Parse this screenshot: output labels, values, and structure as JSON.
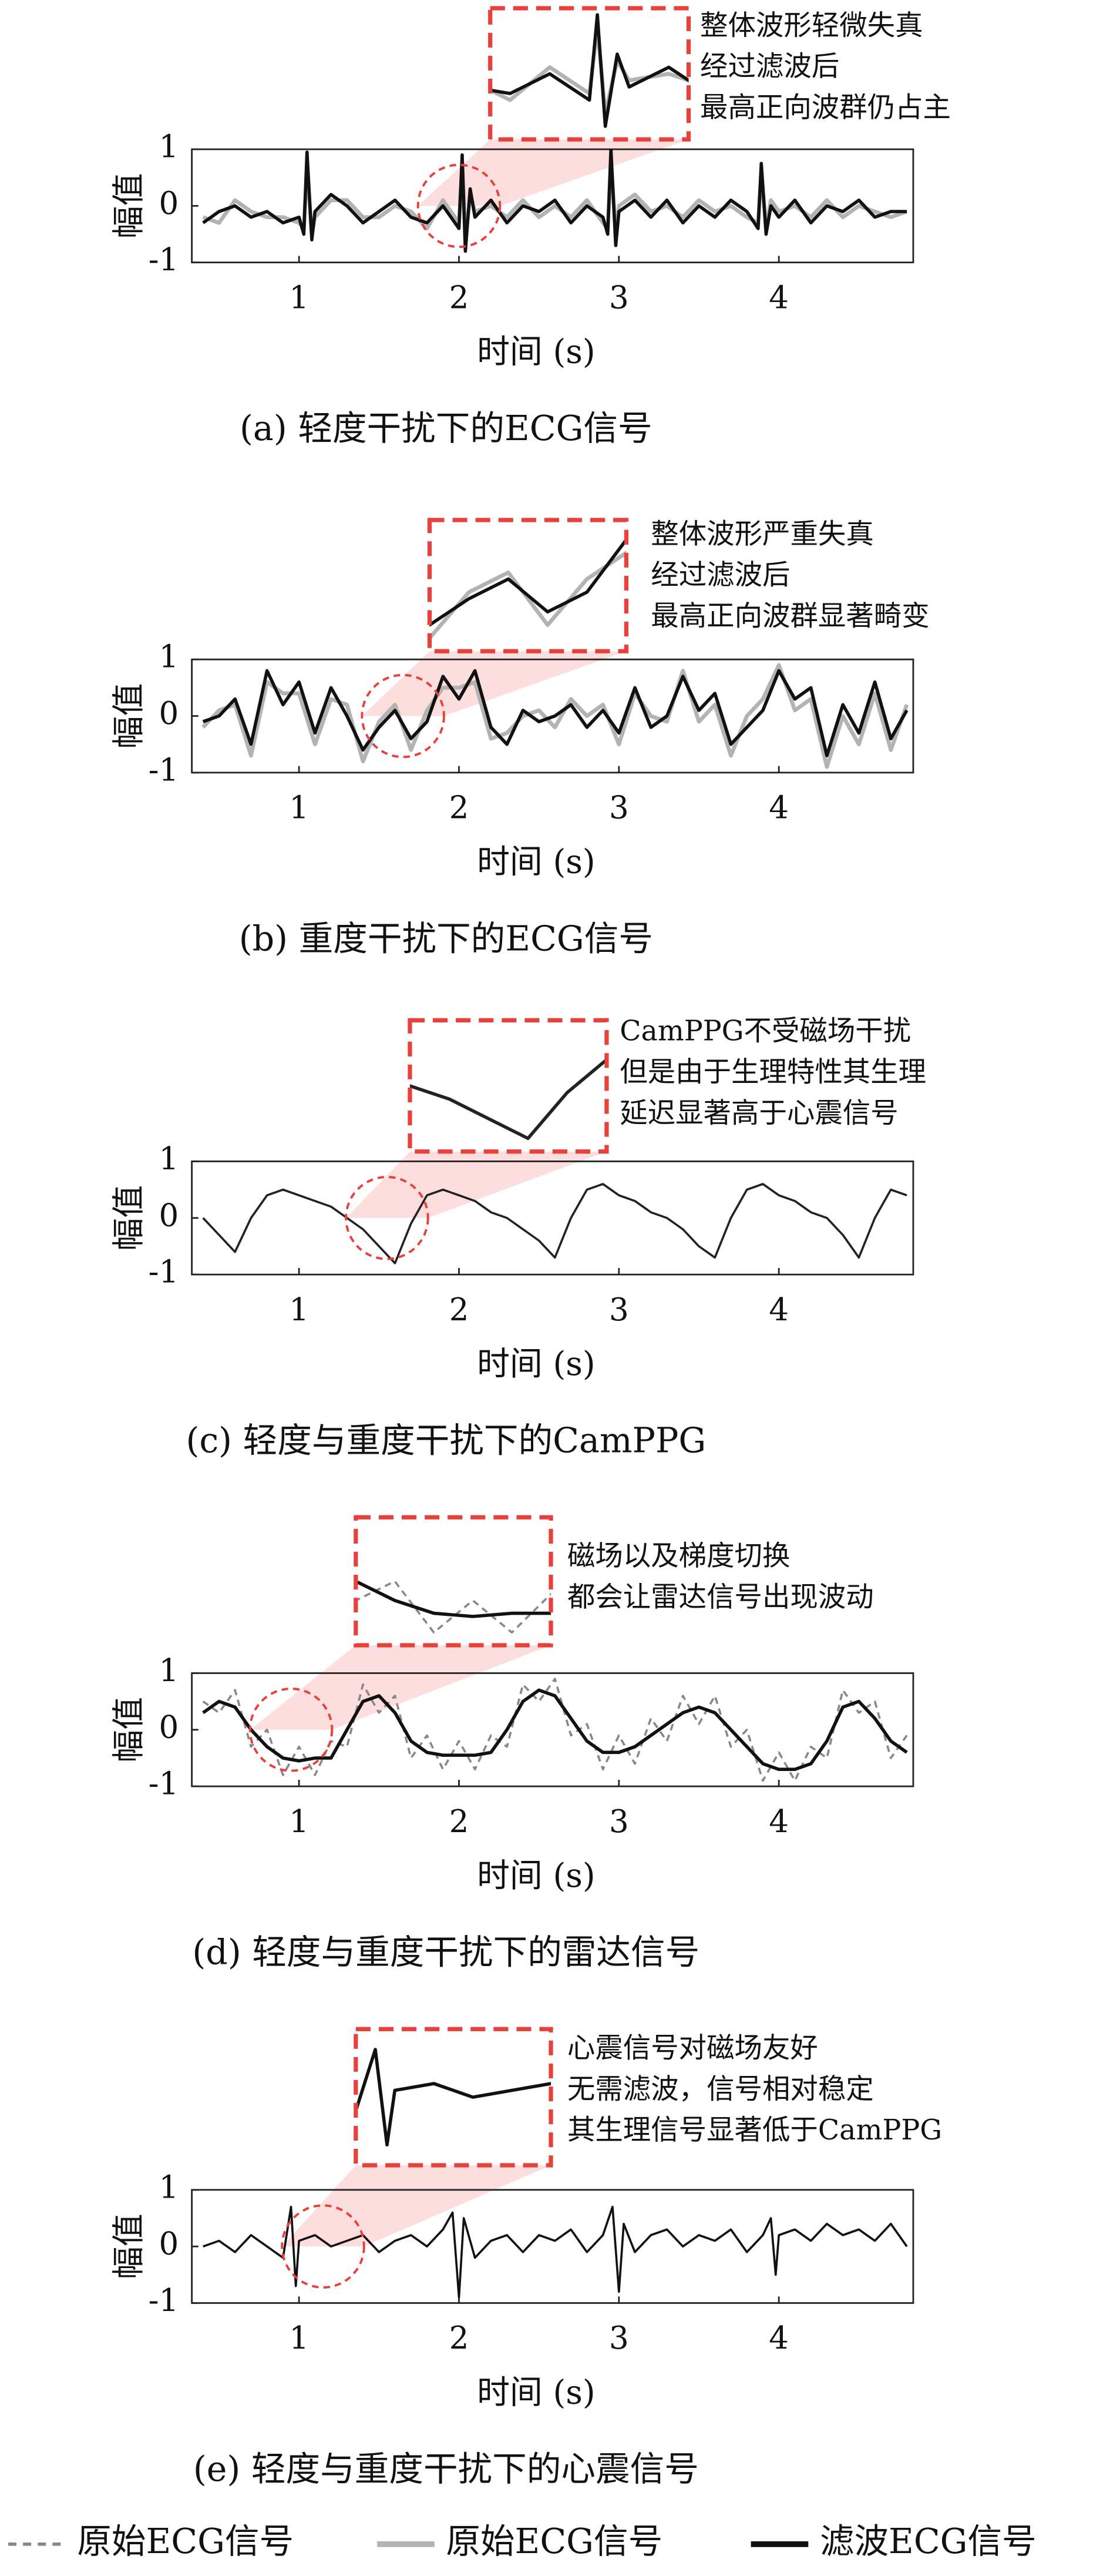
{
  "chart_data": [
    {
      "type": "line",
      "title": "(a) 轻度干扰下的ECG信号",
      "xlabel": "时间 (s)",
      "ylabel": "幅值",
      "annotation": [
        "整体波形轻微失真",
        "经过滤波后",
        "最高正向波群仍占主"
      ],
      "xlim": [
        0.33,
        4.84
      ],
      "ylim": [
        -1,
        1
      ],
      "xticks": [
        1,
        2,
        3,
        4
      ],
      "yticks": [
        -1,
        0,
        1
      ],
      "x": [
        0.4,
        0.5,
        0.6,
        0.7,
        0.8,
        0.9,
        1.0,
        1.03,
        1.05,
        1.08,
        1.1,
        1.2,
        1.3,
        1.4,
        1.5,
        1.6,
        1.7,
        1.8,
        1.9,
        2.0,
        2.02,
        2.04,
        2.07,
        2.1,
        2.2,
        2.3,
        2.4,
        2.5,
        2.6,
        2.7,
        2.8,
        2.9,
        2.93,
        2.95,
        2.98,
        3.0,
        3.1,
        3.2,
        3.3,
        3.4,
        3.5,
        3.6,
        3.7,
        3.8,
        3.87,
        3.89,
        3.92,
        3.95,
        4.0,
        4.1,
        4.2,
        4.3,
        4.4,
        4.5,
        4.6,
        4.7,
        4.8
      ],
      "series": [
        {
          "color": "#b3b3b3",
          "dashed": false,
          "values": [
            -0.2,
            -0.3,
            0.1,
            -0.1,
            -0.2,
            -0.2,
            -0.3,
            -0.4,
            0.7,
            -0.5,
            -0.2,
            0.1,
            0.1,
            -0.2,
            -0.2,
            0.0,
            -0.1,
            -0.4,
            0.1,
            -0.3,
            0.7,
            -0.6,
            0.2,
            -0.1,
            0.0,
            -0.2,
            0.1,
            -0.2,
            0.0,
            -0.2,
            0.1,
            -0.3,
            -0.4,
            0.8,
            -0.5,
            0.0,
            0.2,
            -0.1,
            0.0,
            -0.2,
            0.1,
            -0.1,
            0.0,
            -0.2,
            -0.3,
            0.6,
            -0.4,
            0.1,
            -0.1,
            0.0,
            -0.2,
            0.1,
            -0.2,
            0.0,
            -0.1,
            -0.2,
            -0.1
          ]
        },
        {
          "color": "#111111",
          "dashed": false,
          "values": [
            -0.3,
            -0.1,
            0.0,
            -0.2,
            -0.1,
            -0.3,
            -0.2,
            -0.5,
            0.95,
            -0.6,
            -0.1,
            0.2,
            0.0,
            -0.3,
            -0.1,
            0.1,
            -0.2,
            -0.3,
            0.0,
            -0.4,
            0.9,
            -0.8,
            0.3,
            -0.2,
            0.1,
            -0.3,
            0.0,
            -0.1,
            0.1,
            -0.3,
            0.0,
            -0.2,
            -0.5,
            1.0,
            -0.7,
            -0.1,
            0.1,
            -0.2,
            0.1,
            -0.3,
            0.0,
            -0.2,
            0.1,
            -0.1,
            -0.4,
            0.75,
            -0.5,
            0.0,
            -0.2,
            0.1,
            -0.3,
            0.0,
            -0.1,
            0.1,
            -0.2,
            -0.1,
            -0.1
          ]
        }
      ]
    },
    {
      "type": "line",
      "title": "(b) 重度干扰下的ECG信号",
      "xlabel": "时间 (s)",
      "ylabel": "幅值",
      "annotation": [
        "整体波形严重失真",
        "经过滤波后",
        "最高正向波群显著畸变"
      ],
      "xlim": [
        0.33,
        4.84
      ],
      "ylim": [
        -1,
        1
      ],
      "xticks": [
        1,
        2,
        3,
        4
      ],
      "yticks": [
        -1,
        0,
        1
      ],
      "x": [
        0.4,
        0.5,
        0.6,
        0.7,
        0.8,
        0.9,
        1.0,
        1.1,
        1.2,
        1.3,
        1.4,
        1.5,
        1.6,
        1.7,
        1.8,
        1.9,
        2.0,
        2.1,
        2.2,
        2.3,
        2.4,
        2.5,
        2.6,
        2.7,
        2.8,
        2.9,
        3.0,
        3.1,
        3.2,
        3.3,
        3.4,
        3.5,
        3.6,
        3.7,
        3.8,
        3.9,
        4.0,
        4.1,
        4.2,
        4.3,
        4.4,
        4.5,
        4.6,
        4.7,
        4.8
      ],
      "series": [
        {
          "color": "#b3b3b3",
          "dashed": false,
          "values": [
            -0.2,
            0.1,
            0.2,
            -0.7,
            0.6,
            0.4,
            0.4,
            -0.5,
            0.3,
            0.2,
            -0.8,
            -0.1,
            0.2,
            -0.6,
            0.1,
            0.5,
            0.5,
            0.6,
            -0.4,
            -0.3,
            0.0,
            0.1,
            -0.2,
            0.3,
            0.0,
            0.2,
            -0.5,
            0.4,
            0.0,
            -0.1,
            0.8,
            -0.1,
            0.2,
            -0.7,
            0.0,
            0.3,
            0.9,
            0.1,
            0.3,
            -0.9,
            0.0,
            -0.5,
            0.4,
            -0.6,
            0.2
          ]
        },
        {
          "color": "#111111",
          "dashed": false,
          "values": [
            -0.1,
            0.0,
            0.3,
            -0.5,
            0.8,
            0.2,
            0.6,
            -0.3,
            0.5,
            0.0,
            -0.6,
            -0.2,
            0.1,
            -0.4,
            -0.1,
            0.7,
            0.3,
            0.8,
            -0.2,
            -0.5,
            0.1,
            -0.1,
            0.0,
            0.2,
            -0.2,
            0.1,
            -0.3,
            0.5,
            -0.2,
            0.0,
            0.7,
            0.1,
            0.4,
            -0.5,
            -0.2,
            0.1,
            0.8,
            0.3,
            0.5,
            -0.7,
            0.2,
            -0.3,
            0.6,
            -0.4,
            0.1
          ]
        }
      ]
    },
    {
      "type": "line",
      "title": "(c) 轻度与重度干扰下的CamPPG",
      "xlabel": "时间 (s)",
      "ylabel": "幅值",
      "annotation": [
        "CamPPG不受磁场干扰",
        "但是由于生理特性其生理",
        "延迟显著高于心震信号"
      ],
      "xlim": [
        0.33,
        4.84
      ],
      "ylim": [
        -1,
        1
      ],
      "xticks": [
        1,
        2,
        3,
        4
      ],
      "yticks": [
        -1,
        0,
        1
      ],
      "x": [
        0.4,
        0.5,
        0.6,
        0.7,
        0.8,
        0.9,
        1.0,
        1.1,
        1.2,
        1.3,
        1.4,
        1.5,
        1.6,
        1.7,
        1.8,
        1.9,
        2.0,
        2.1,
        2.2,
        2.3,
        2.4,
        2.5,
        2.6,
        2.7,
        2.8,
        2.9,
        3.0,
        3.1,
        3.2,
        3.3,
        3.4,
        3.5,
        3.6,
        3.7,
        3.8,
        3.9,
        4.0,
        4.1,
        4.2,
        4.3,
        4.4,
        4.5,
        4.6,
        4.7,
        4.8
      ],
      "series": [
        {
          "color": "#222222",
          "dashed": false,
          "values": [
            0.0,
            -0.3,
            -0.6,
            0.0,
            0.4,
            0.5,
            0.4,
            0.3,
            0.2,
            0.0,
            -0.2,
            -0.5,
            -0.8,
            -0.1,
            0.4,
            0.5,
            0.4,
            0.3,
            0.1,
            0.0,
            -0.2,
            -0.4,
            -0.7,
            0.0,
            0.5,
            0.6,
            0.4,
            0.3,
            0.1,
            0.0,
            -0.2,
            -0.5,
            -0.7,
            0.0,
            0.5,
            0.6,
            0.4,
            0.3,
            0.1,
            0.0,
            -0.3,
            -0.7,
            0.0,
            0.5,
            0.4
          ]
        }
      ]
    },
    {
      "type": "line",
      "title": "(d) 轻度与重度干扰下的雷达信号",
      "xlabel": "时间 (s)",
      "ylabel": "幅值",
      "annotation": [
        "磁场以及梯度切换",
        "都会让雷达信号出现波动"
      ],
      "xlim": [
        0.33,
        4.84
      ],
      "ylim": [
        -1,
        1
      ],
      "xticks": [
        1,
        2,
        3,
        4
      ],
      "yticks": [
        -1,
        0,
        1
      ],
      "x": [
        0.4,
        0.5,
        0.6,
        0.7,
        0.8,
        0.9,
        1.0,
        1.1,
        1.2,
        1.3,
        1.4,
        1.5,
        1.6,
        1.7,
        1.8,
        1.9,
        2.0,
        2.1,
        2.2,
        2.3,
        2.4,
        2.5,
        2.6,
        2.7,
        2.8,
        2.9,
        3.0,
        3.1,
        3.2,
        3.3,
        3.4,
        3.5,
        3.6,
        3.7,
        3.8,
        3.9,
        4.0,
        4.1,
        4.2,
        4.3,
        4.4,
        4.5,
        4.6,
        4.7,
        4.8
      ],
      "series": [
        {
          "color": "#888888",
          "dashed": true,
          "values": [
            0.5,
            0.3,
            0.7,
            -0.3,
            0.0,
            -0.8,
            -0.3,
            -0.8,
            -0.2,
            -0.3,
            0.8,
            0.3,
            0.6,
            -0.5,
            -0.1,
            -0.7,
            -0.2,
            -0.7,
            -0.1,
            -0.3,
            0.8,
            0.5,
            0.9,
            -0.1,
            0.1,
            -0.7,
            -0.1,
            -0.6,
            0.2,
            -0.2,
            0.6,
            0.1,
            0.6,
            -0.3,
            0.0,
            -0.9,
            -0.4,
            -0.9,
            -0.3,
            -0.5,
            0.7,
            0.3,
            0.5,
            -0.5,
            -0.1
          ]
        },
        {
          "color": "#111111",
          "dashed": false,
          "values": [
            0.3,
            0.5,
            0.4,
            0.0,
            -0.3,
            -0.5,
            -0.55,
            -0.5,
            -0.5,
            0.0,
            0.5,
            0.6,
            0.3,
            -0.2,
            -0.4,
            -0.45,
            -0.45,
            -0.45,
            -0.4,
            0.0,
            0.5,
            0.7,
            0.6,
            0.2,
            -0.2,
            -0.4,
            -0.4,
            -0.3,
            -0.1,
            0.1,
            0.3,
            0.4,
            0.3,
            0.0,
            -0.3,
            -0.6,
            -0.7,
            -0.7,
            -0.6,
            -0.2,
            0.4,
            0.5,
            0.2,
            -0.2,
            -0.4
          ]
        }
      ]
    },
    {
      "type": "line",
      "title": "(e) 轻度与重度干扰下的心震信号",
      "xlabel": "时间 (s)",
      "ylabel": "幅值",
      "annotation": [
        "心震信号对磁场友好",
        "无需滤波，信号相对稳定",
        "其生理信号显著低于CamPPG"
      ],
      "xlim": [
        0.33,
        4.84
      ],
      "ylim": [
        -1,
        1
      ],
      "xticks": [
        1,
        2,
        3,
        4
      ],
      "yticks": [
        -1,
        0,
        1
      ],
      "x": [
        0.4,
        0.5,
        0.6,
        0.7,
        0.8,
        0.9,
        0.95,
        0.98,
        1.0,
        1.1,
        1.2,
        1.3,
        1.4,
        1.5,
        1.6,
        1.7,
        1.8,
        1.9,
        1.96,
        2.0,
        2.03,
        2.1,
        2.2,
        2.3,
        2.4,
        2.5,
        2.6,
        2.7,
        2.8,
        2.9,
        2.96,
        3.0,
        3.03,
        3.1,
        3.2,
        3.3,
        3.4,
        3.5,
        3.6,
        3.7,
        3.8,
        3.9,
        3.95,
        3.98,
        4.0,
        4.1,
        4.2,
        4.3,
        4.4,
        4.5,
        4.6,
        4.7,
        4.8
      ],
      "series": [
        {
          "color": "#111111",
          "dashed": false,
          "values": [
            0.0,
            0.1,
            -0.1,
            0.2,
            0.0,
            -0.2,
            0.7,
            -0.7,
            0.1,
            0.2,
            0.0,
            0.1,
            0.2,
            -0.1,
            0.1,
            0.2,
            0.0,
            0.3,
            0.6,
            -0.9,
            0.5,
            -0.2,
            0.1,
            0.2,
            -0.1,
            0.2,
            0.1,
            0.3,
            -0.1,
            0.2,
            0.7,
            -0.8,
            0.4,
            -0.1,
            0.2,
            0.3,
            0.0,
            0.2,
            0.1,
            0.3,
            -0.1,
            0.2,
            0.5,
            -0.5,
            0.2,
            0.3,
            0.1,
            0.4,
            0.2,
            0.3,
            0.1,
            0.4,
            0.0
          ]
        }
      ]
    }
  ],
  "legend": [
    {
      "name": "原始ECG信号",
      "color": "#888888",
      "dashed": true
    },
    {
      "name": "原始ECG信号",
      "color": "#b3b3b3",
      "dashed": false
    },
    {
      "name": "滤波ECG信号",
      "color": "#111111",
      "dashed": false
    }
  ]
}
